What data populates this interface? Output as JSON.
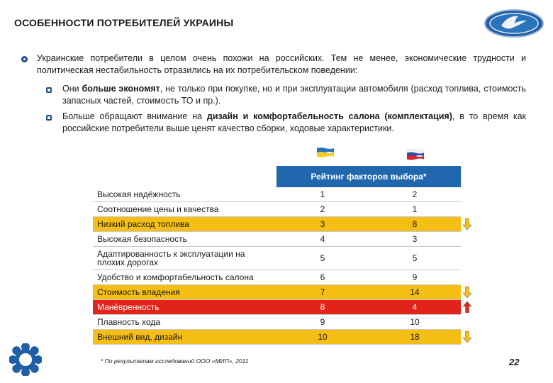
{
  "title": "ОСОБЕННОСТИ ПОТРЕБИТЕЛЕЙ УКРАИНЫ",
  "intro": "Украинские потребители в целом очень похожи на российских. Тем не менее, экономические трудности и политическая нестабильность отразились на их потребительском поведении:",
  "points": [
    {
      "pre": "Они ",
      "bold": "больше экономят",
      "post": ", не только при покупке, но и при эксплуатации автомобиля (расход топлива, стоимость запасных частей, стоимость ТО и пр.)."
    },
    {
      "pre": "Больше обращают внимание на ",
      "bold": "дизайн и комфортабельность салона (комплектация)",
      "post": ", в то время как российские потребители выше ценят качество сборки, ходовые характеристики."
    }
  ],
  "table": {
    "header": "Рейтинг факторов выбора*",
    "rows": [
      {
        "label": "Высокая надёжность",
        "ua": "1",
        "ru": "2",
        "hl": "none",
        "arrow": "none"
      },
      {
        "label": "Соотношение цены и качества",
        "ua": "2",
        "ru": "1",
        "hl": "none",
        "arrow": "none"
      },
      {
        "label": "Низкий расход топлива",
        "ua": "3",
        "ru": "8",
        "hl": "yellow",
        "arrow": "down"
      },
      {
        "label": "Высокая безопасность",
        "ua": "4",
        "ru": "3",
        "hl": "none",
        "arrow": "none"
      },
      {
        "label": "Адаптированность к эксплуатации на плохих дорогах",
        "ua": "5",
        "ru": "5",
        "hl": "none",
        "arrow": "none"
      },
      {
        "label": "Удобство и комфортабельность салона",
        "ua": "6",
        "ru": "9",
        "hl": "none",
        "arrow": "none"
      },
      {
        "label": "Стоимость владения",
        "ua": "7",
        "ru": "14",
        "hl": "yellow",
        "arrow": "down"
      },
      {
        "label": "Манёвренность",
        "ua": "8",
        "ru": "4",
        "hl": "red",
        "arrow": "up"
      },
      {
        "label": "Плавность хода",
        "ua": "9",
        "ru": "10",
        "hl": "none",
        "arrow": "none"
      },
      {
        "label": "Внешний вид, дизайн",
        "ua": "10",
        "ru": "18",
        "hl": "yellow",
        "arrow": "down"
      }
    ]
  },
  "footnote": "*  По результатам исследований ООО «МИП», 2011",
  "page_number": "22",
  "colors": {
    "accent": "#2067ad",
    "yellow": "#f5be14",
    "red": "#e2231a"
  }
}
